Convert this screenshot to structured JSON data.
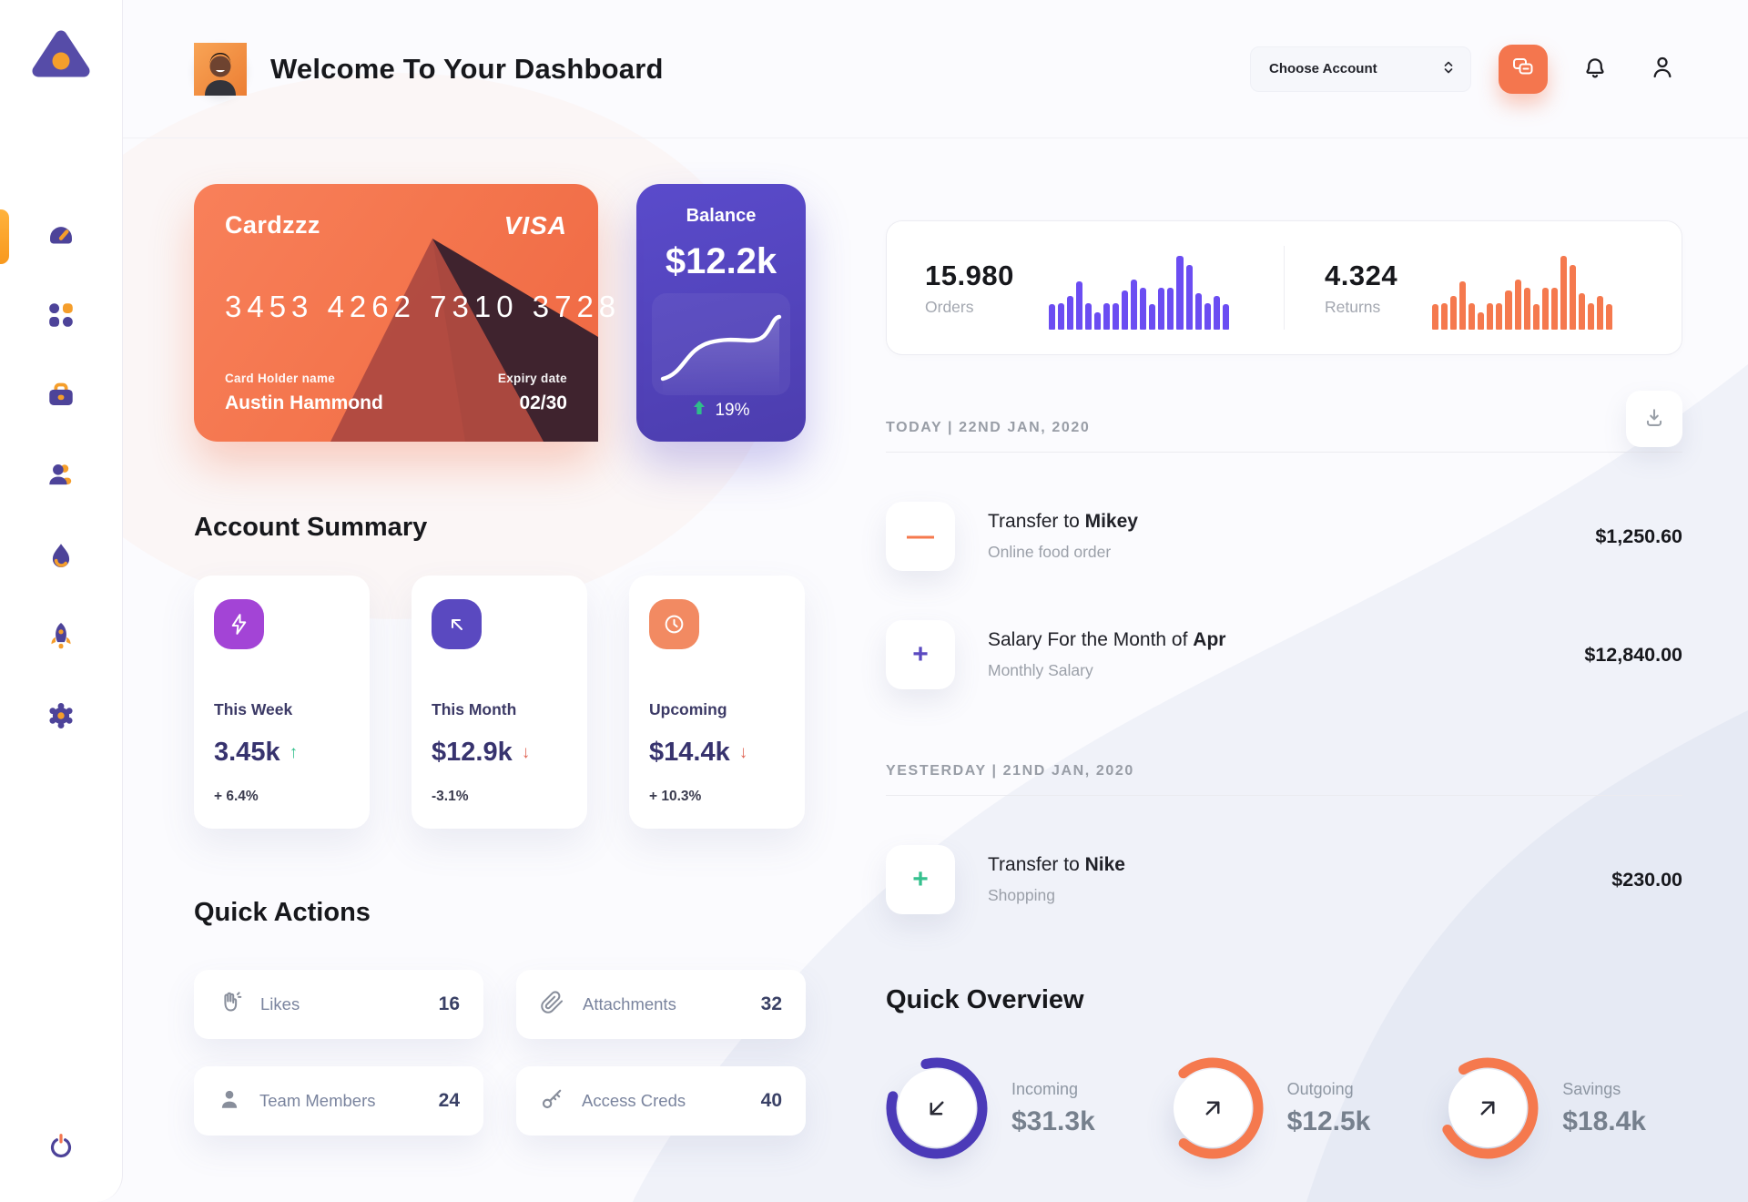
{
  "header": {
    "title": "Welcome To Your Dashboard",
    "account_select": {
      "label": "Choose Account"
    }
  },
  "sidebar": {
    "items": [
      {
        "name": "dashboard",
        "active": true
      },
      {
        "name": "apps",
        "active": false
      },
      {
        "name": "portfolio",
        "active": false
      },
      {
        "name": "contacts",
        "active": false
      },
      {
        "name": "trending",
        "active": false
      },
      {
        "name": "launch",
        "active": false
      },
      {
        "name": "settings",
        "active": false
      }
    ]
  },
  "credit_card": {
    "nickname": "Cardzzz",
    "brand": "VISA",
    "number": "3453 4262 7310 3728",
    "holder_label": "Card Holder name",
    "holder": "Austin Hammond",
    "expiry_label": "Expiry date",
    "expiry": "02/30"
  },
  "balance_card": {
    "label": "Balance",
    "amount": "$12.2k",
    "change": "19%",
    "trend": "up",
    "sparkline": [
      5,
      10,
      22,
      38,
      46,
      49,
      50,
      50,
      52,
      60,
      78,
      82
    ]
  },
  "stats": {
    "orders": {
      "value": "15.980",
      "label": "Orders",
      "color": "#6b4df2",
      "bars": [
        30,
        32,
        40,
        58,
        32,
        21,
        32,
        32,
        47,
        60,
        50,
        30,
        50,
        50,
        88,
        77,
        44,
        32,
        40,
        30
      ]
    },
    "returns": {
      "value": "4.324",
      "label": "Returns",
      "color": "#f5794e",
      "bars": [
        30,
        32,
        40,
        58,
        32,
        21,
        32,
        32,
        47,
        60,
        50,
        30,
        50,
        50,
        88,
        77,
        44,
        32,
        40,
        30
      ]
    }
  },
  "account_summary": {
    "title": "Account Summary",
    "cards": [
      {
        "label": "This Week",
        "value": "3.45k",
        "trend": "up",
        "change": "+ 6.4%",
        "icon": "lightning",
        "icon_bg": "#a344d6"
      },
      {
        "label": "This Month",
        "value": "$12.9k",
        "trend": "down",
        "change": "-3.1%",
        "icon": "arrow-up-left",
        "icon_bg": "#5a49c0"
      },
      {
        "label": "Upcoming",
        "value": "$14.4k",
        "trend": "down",
        "change": "+ 10.3%",
        "icon": "clock",
        "icon_bg": "#f28a62"
      }
    ]
  },
  "quick_actions": {
    "title": "Quick Actions",
    "items": [
      {
        "label": "Likes",
        "count": "16",
        "icon": "hand-clap"
      },
      {
        "label": "Attachments",
        "count": "32",
        "icon": "paperclip"
      },
      {
        "label": "Team Members",
        "count": "24",
        "icon": "person"
      },
      {
        "label": "Access Creds",
        "count": "40",
        "icon": "key"
      }
    ]
  },
  "transactions": {
    "groups": [
      {
        "date_header": "TODAY | 22ND JAN, 2020",
        "items": [
          {
            "symbol": "—",
            "symbol_color": "#f5794e",
            "title_prefix": "Transfer to ",
            "title_bold": "Mikey",
            "subtitle": "Online food order",
            "amount": "$1,250.60"
          },
          {
            "symbol": "+",
            "symbol_color": "#5a49c0",
            "title_prefix": "Salary For the Month of ",
            "title_bold": "Apr",
            "subtitle": "Monthly Salary",
            "amount": "$12,840.00"
          }
        ]
      },
      {
        "date_header": "YESTERDAY | 21ND JAN, 2020",
        "items": [
          {
            "symbol": "+",
            "symbol_color": "#35c08e",
            "title_prefix": "Transfer to ",
            "title_bold": "Nike",
            "subtitle": "Shopping",
            "amount": "$230.00"
          }
        ]
      }
    ]
  },
  "quick_overview": {
    "title": "Quick Overview",
    "rings": [
      {
        "label": "Incoming",
        "amount": "$31.3k",
        "color": "#4b3ab8",
        "pct": 83,
        "rotate": 256,
        "arrow": "down-left"
      },
      {
        "label": "Outgoing",
        "amount": "$12.5k",
        "color": "#f5794e",
        "pct": 72,
        "rotate": 230,
        "arrow": "up-right"
      },
      {
        "label": "Savings",
        "amount": "$18.4k",
        "color": "#f5794e",
        "pct": 76,
        "rotate": 238,
        "arrow": "up-right"
      }
    ]
  },
  "colors": {
    "accent_orange": "#f5794e",
    "accent_purple": "#5a49c0",
    "green": "#2fbe8a",
    "red": "#e06656"
  }
}
